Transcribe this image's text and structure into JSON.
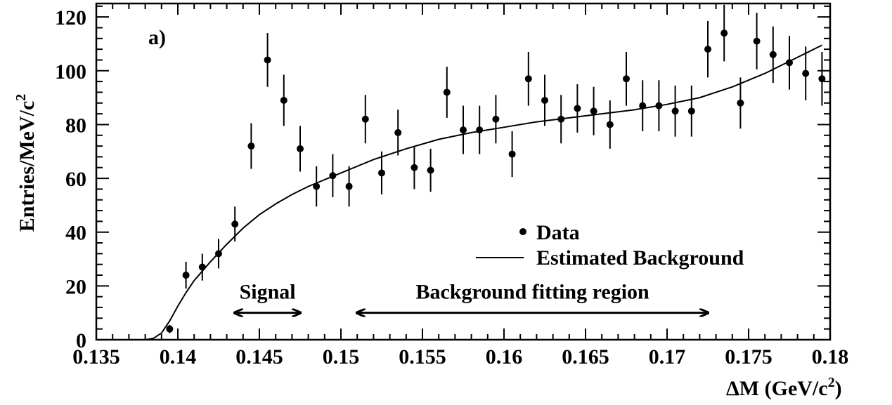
{
  "chart_data": {
    "type": "scatter",
    "panel_label": "a)",
    "xlabel": "ΔM  (GeV/c",
    "xlabel_sup": "2",
    "xlabel_tail": ")",
    "ylabel": "Entries/MeV/c",
    "ylabel_sup": "2",
    "xlim": [
      0.135,
      0.18
    ],
    "ylim": [
      0,
      125
    ],
    "xticks": [
      0.135,
      0.14,
      0.145,
      0.15,
      0.155,
      0.16,
      0.165,
      0.17,
      0.175,
      0.18
    ],
    "xtick_labels": [
      "0.135",
      "0.14",
      "0.145",
      "0.15",
      "0.155",
      "0.16",
      "0.165",
      "0.17",
      "0.175",
      "0.18"
    ],
    "yticks": [
      0,
      20,
      40,
      60,
      80,
      100,
      120
    ],
    "ytick_labels": [
      "0",
      "20",
      "40",
      "60",
      "80",
      "100",
      "120"
    ],
    "series": [
      {
        "name": "Data",
        "kind": "points_with_errors",
        "x": [
          0.1395,
          0.1405,
          0.1415,
          0.1425,
          0.1435,
          0.1445,
          0.1455,
          0.1465,
          0.1475,
          0.1485,
          0.1495,
          0.1505,
          0.1515,
          0.1525,
          0.1535,
          0.1545,
          0.1555,
          0.1565,
          0.1575,
          0.1585,
          0.1595,
          0.1605,
          0.1615,
          0.1625,
          0.1635,
          0.1645,
          0.1655,
          0.1665,
          0.1675,
          0.1685,
          0.1695,
          0.1705,
          0.1715,
          0.1725,
          0.1735,
          0.1745,
          0.1755,
          0.1765,
          0.1775,
          0.1785,
          0.1795
        ],
        "y": [
          4,
          24,
          27,
          32,
          43,
          72,
          104,
          89,
          71,
          57,
          61,
          57,
          82,
          62,
          77,
          64,
          63,
          92,
          78,
          78,
          82,
          69,
          97,
          89,
          82,
          86,
          85,
          80,
          97,
          87,
          87,
          85,
          85,
          108,
          114,
          88,
          111,
          106,
          103,
          99,
          97
        ],
        "err": [
          1.5,
          5,
          5,
          5.5,
          6.5,
          8.5,
          10,
          9.5,
          8.5,
          7.5,
          8,
          7.5,
          9,
          8,
          8.5,
          8,
          8,
          9.5,
          9,
          9,
          9,
          8.5,
          10,
          9.5,
          9,
          9,
          9,
          9,
          10,
          9.5,
          9.5,
          9.5,
          9.5,
          10.5,
          10.5,
          9.5,
          10.5,
          10.5,
          10,
          10,
          10
        ]
      },
      {
        "name": "Estimated Background",
        "kind": "line",
        "x": [
          0.1365,
          0.137,
          0.1375,
          0.138,
          0.1385,
          0.139,
          0.1395,
          0.14,
          0.1405,
          0.141,
          0.142,
          0.143,
          0.144,
          0.145,
          0.146,
          0.147,
          0.148,
          0.149,
          0.15,
          0.152,
          0.154,
          0.156,
          0.158,
          0.16,
          0.162,
          0.164,
          0.166,
          0.168,
          0.17,
          0.172,
          0.174,
          0.176,
          0.178,
          0.1795
        ],
        "y": [
          0,
          0,
          0,
          0,
          0.5,
          2.5,
          7,
          12.5,
          17.5,
          22,
          29,
          35.5,
          41.5,
          46.5,
          50.5,
          54,
          57,
          59.5,
          62,
          67,
          71,
          74.5,
          77,
          79,
          81,
          82.5,
          84,
          85.5,
          87.5,
          90,
          94,
          99,
          105,
          109.5
        ]
      }
    ],
    "annotations": [
      {
        "text": "Signal",
        "arrow_from": 0.1435,
        "arrow_to": 0.1475,
        "y": 10
      },
      {
        "text": "Background fitting region",
        "arrow_from": 0.151,
        "arrow_to": 0.1725,
        "y": 10
      }
    ],
    "legend": {
      "placement": "lower-right",
      "entries": [
        {
          "label": "Data",
          "marker": "point"
        },
        {
          "label": "Estimated Background",
          "marker": "line"
        }
      ]
    },
    "grid": false
  }
}
